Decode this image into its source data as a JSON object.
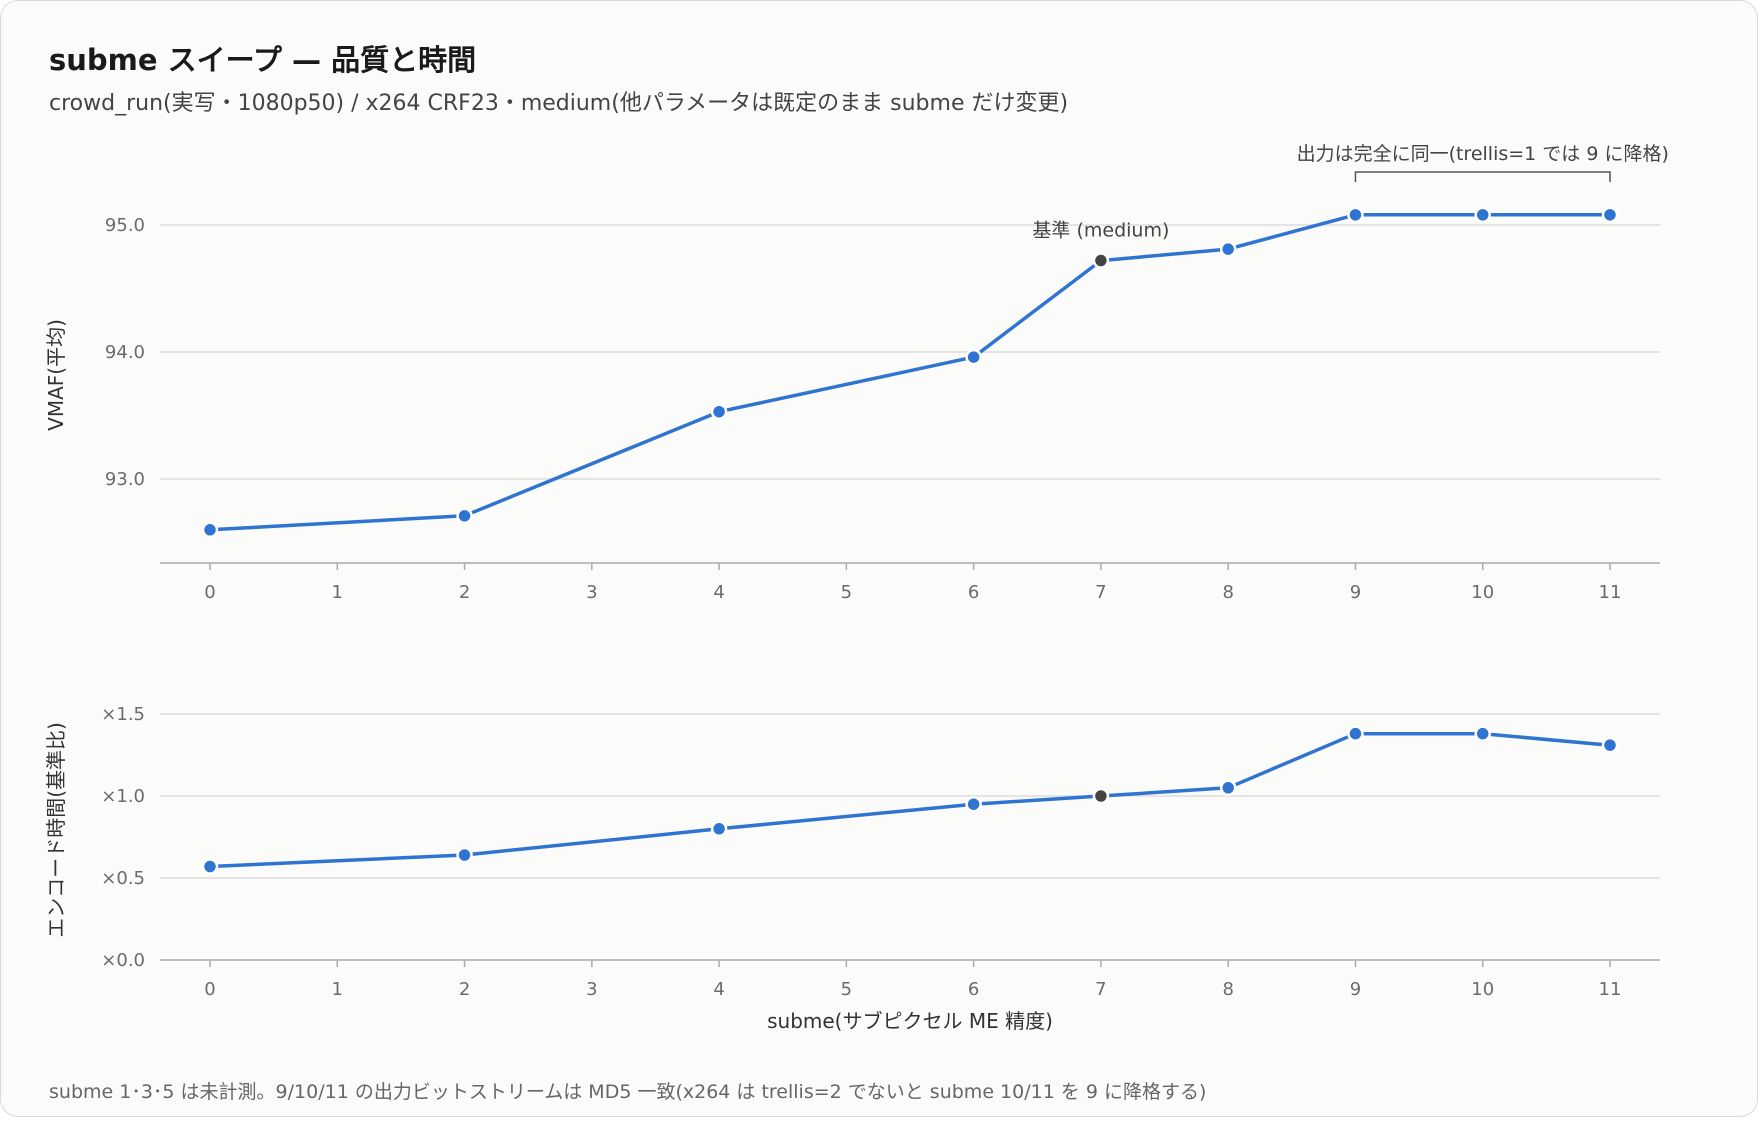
{
  "title": "subme スイープ — 品質と時間",
  "subtitle": "crowd_run(実写・1080p50) / x264 CRF23・medium(他パラメータは既定のまま subme だけ変更)",
  "footnote": "subme 1･3･5 は未計測。9/10/11 の出力ビットストリームは MD5 一致(x264 は trellis=2 でないと subme 10/11 を 9 に降格する)",
  "colors": {
    "line": "#2f74d0",
    "baseline_marker": "#444444",
    "grid": "#dddddd",
    "axis": "#aaaaaa"
  },
  "chart_data": [
    {
      "type": "line",
      "ylabel": "VMAF(平均)",
      "xlim": [
        0,
        11
      ],
      "ylim": [
        92.35,
        95.3
      ],
      "x_ticks": [
        0,
        1,
        2,
        3,
        4,
        5,
        6,
        7,
        8,
        9,
        10,
        11
      ],
      "y_ticks": [
        93.0,
        94.0,
        95.0
      ],
      "y_tick_labels": [
        "93.0",
        "94.0",
        "95.0"
      ],
      "grid": true,
      "x": [
        0,
        2,
        4,
        6,
        7,
        8,
        9,
        10,
        11
      ],
      "values": [
        92.6,
        92.71,
        93.53,
        93.96,
        94.72,
        94.81,
        95.08,
        95.08,
        95.08
      ],
      "highlight_x": 7,
      "annotations": [
        {
          "text": "基準 (medium)",
          "x": 7
        },
        {
          "text": "出力は完全に同一(trellis=1 では 9 に降格)",
          "x_range": [
            9,
            11
          ]
        }
      ]
    },
    {
      "type": "line",
      "ylabel": "エンコード時間(基準比)",
      "xlabel": "subme(サブピクセル ME 精度)",
      "xlim": [
        0,
        11
      ],
      "ylim": [
        0,
        1.5
      ],
      "x_ticks": [
        0,
        1,
        2,
        3,
        4,
        5,
        6,
        7,
        8,
        9,
        10,
        11
      ],
      "y_ticks": [
        0,
        0.5,
        1.0,
        1.5
      ],
      "y_tick_labels": [
        "×0.0",
        "×0.5",
        "×1.0",
        "×1.5"
      ],
      "grid": true,
      "x": [
        0,
        2,
        4,
        6,
        7,
        8,
        9,
        10,
        11
      ],
      "values": [
        0.57,
        0.64,
        0.8,
        0.95,
        1.0,
        1.05,
        1.38,
        1.38,
        1.31
      ],
      "highlight_x": 7
    }
  ]
}
